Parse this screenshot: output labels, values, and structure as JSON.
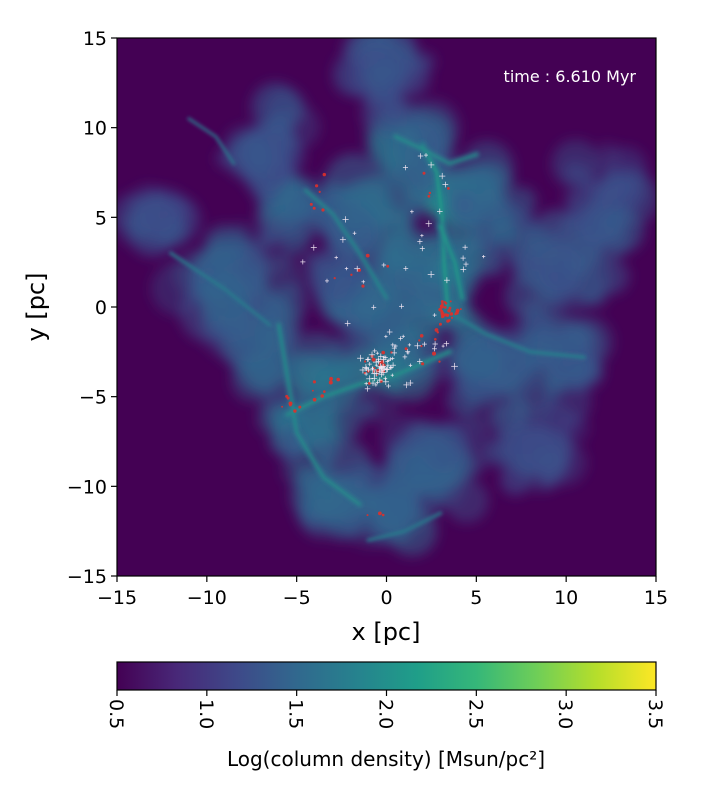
{
  "chart_data": [
    {
      "type": "heatmap",
      "title": "",
      "annotation": "time : 6.610 Myr",
      "xlabel": "x [pc]",
      "ylabel": "y [pc]",
      "xlim": [
        -15,
        15
      ],
      "ylim": [
        -15,
        15
      ],
      "xticks": [
        "−15",
        "−10",
        "−5",
        "0",
        "5",
        "10",
        "15"
      ],
      "xtick_values": [
        -15,
        -10,
        -5,
        0,
        5,
        10,
        15
      ],
      "yticks": [
        "−15",
        "−10",
        "−5",
        "0",
        "5",
        "10",
        "15"
      ],
      "ytick_values": [
        -15,
        -10,
        -5,
        0,
        5,
        10,
        15
      ],
      "grid": false,
      "colormap": "viridis",
      "background_color": "#440154",
      "features": [
        {
          "x": 3.5,
          "y": 6.0,
          "weight": 0.9,
          "spread": 2.2
        },
        {
          "x": 3.3,
          "y": 2.0,
          "weight": 1.0,
          "spread": 1.6
        },
        {
          "x": 3.8,
          "y": -0.2,
          "weight": 1.0,
          "spread": 1.3
        },
        {
          "x": 1.0,
          "y": 9.0,
          "weight": 0.6,
          "spread": 2.5
        },
        {
          "x": 6.0,
          "y": 5.0,
          "weight": 0.5,
          "spread": 3.0
        },
        {
          "x": -1.0,
          "y": 4.5,
          "weight": 0.6,
          "spread": 2.8
        },
        {
          "x": -4.5,
          "y": 5.5,
          "weight": 0.5,
          "spread": 2.5
        },
        {
          "x": -0.3,
          "y": -3.5,
          "weight": 0.8,
          "spread": 2.5
        },
        {
          "x": -3.5,
          "y": -4.5,
          "weight": 0.7,
          "spread": 2.2
        },
        {
          "x": -7.0,
          "y": -1.5,
          "weight": 0.5,
          "spread": 3.0
        },
        {
          "x": -8.5,
          "y": 2.0,
          "weight": 0.45,
          "spread": 3.2
        },
        {
          "x": -5.0,
          "y": -7.0,
          "weight": 0.6,
          "spread": 2.2
        },
        {
          "x": -3.0,
          "y": -10.5,
          "weight": 0.55,
          "spread": 2.2
        },
        {
          "x": 0.0,
          "y": -11.5,
          "weight": 0.6,
          "spread": 2.4
        },
        {
          "x": 2.5,
          "y": -9.0,
          "weight": 0.45,
          "spread": 2.8
        },
        {
          "x": 6.0,
          "y": -3.5,
          "weight": 0.5,
          "spread": 2.8
        },
        {
          "x": 9.5,
          "y": -3.0,
          "weight": 0.45,
          "spread": 2.8
        },
        {
          "x": 10.0,
          "y": 2.5,
          "weight": 0.4,
          "spread": 3.0
        },
        {
          "x": 12.5,
          "y": 6.0,
          "weight": 0.35,
          "spread": 2.5
        },
        {
          "x": 2.0,
          "y": 1.5,
          "weight": 0.6,
          "spread": 2.6
        },
        {
          "x": -2.0,
          "y": 0.5,
          "weight": 0.5,
          "spread": 2.6
        },
        {
          "x": 0.0,
          "y": 13.0,
          "weight": 0.35,
          "spread": 2.5
        },
        {
          "x": -6.5,
          "y": 8.5,
          "weight": 0.3,
          "spread": 2.5
        },
        {
          "x": -12.5,
          "y": 5.0,
          "weight": 0.3,
          "spread": 2.0
        },
        {
          "x": 8.0,
          "y": -7.5,
          "weight": 0.35,
          "spread": 2.5
        }
      ],
      "filaments": [
        {
          "points": [
            [
              3.4,
              0.0
            ],
            [
              3.2,
              2.5
            ],
            [
              3.1,
              5.0
            ],
            [
              2.8,
              7.5
            ],
            [
              2.0,
              9.0
            ]
          ],
          "weight": 1.2
        },
        {
          "points": [
            [
              -5.5,
              -6.0
            ],
            [
              -3.5,
              -5.0
            ],
            [
              -1.5,
              -4.3
            ],
            [
              0.5,
              -3.8
            ],
            [
              3.5,
              -2.5
            ]
          ],
          "weight": 1.0
        },
        {
          "points": [
            [
              -6.0,
              -1.0
            ],
            [
              -5.5,
              -4.0
            ],
            [
              -5.0,
              -7.0
            ],
            [
              -3.5,
              -9.5
            ],
            [
              -1.5,
              -11.0
            ]
          ],
          "weight": 0.9
        },
        {
          "points": [
            [
              0.5,
              9.5
            ],
            [
              2.0,
              8.8
            ],
            [
              3.5,
              8.0
            ],
            [
              5.0,
              8.5
            ]
          ],
          "weight": 0.9
        },
        {
          "points": [
            [
              -4.5,
              6.5
            ],
            [
              -3.0,
              5.2
            ],
            [
              -1.5,
              3.0
            ],
            [
              0.0,
              0.5
            ]
          ],
          "weight": 0.8
        },
        {
          "points": [
            [
              3.5,
              -0.3
            ],
            [
              5.5,
              -1.5
            ],
            [
              8.0,
              -2.5
            ],
            [
              11.0,
              -2.8
            ]
          ],
          "weight": 0.7
        },
        {
          "points": [
            [
              -12.0,
              3.0
            ],
            [
              -9.0,
              1.0
            ],
            [
              -6.5,
              -1.0
            ]
          ],
          "weight": 0.6
        },
        {
          "points": [
            [
              -1.0,
              -13.0
            ],
            [
              1.0,
              -12.5
            ],
            [
              3.0,
              -11.5
            ]
          ],
          "weight": 0.6
        },
        {
          "points": [
            [
              -11.0,
              10.5
            ],
            [
              -9.5,
              9.5
            ],
            [
              -8.5,
              8.0
            ]
          ],
          "weight": 0.5
        },
        {
          "points": [
            [
              3.0,
              4.5
            ],
            [
              3.8,
              2.5
            ],
            [
              4.2,
              0.5
            ]
          ],
          "weight": 1.1
        }
      ],
      "stars": [
        {
          "x": 3.5,
          "y": -0.2,
          "color": "red",
          "count": 30,
          "spread": 0.6
        },
        {
          "x": -0.5,
          "y": -3.5,
          "color": "red",
          "count": 18,
          "spread": 0.9
        },
        {
          "x": -3.5,
          "y": -4.5,
          "color": "red",
          "count": 8,
          "spread": 1.0
        },
        {
          "x": -5.3,
          "y": -5.5,
          "color": "red",
          "count": 8,
          "spread": 0.6
        },
        {
          "x": 2.0,
          "y": -1.5,
          "color": "red",
          "count": 10,
          "spread": 1.4
        },
        {
          "x": -1.5,
          "y": 2.0,
          "color": "red",
          "count": 6,
          "spread": 1.4
        },
        {
          "x": -3.5,
          "y": 6.0,
          "color": "red",
          "count": 6,
          "spread": 1.2
        },
        {
          "x": 2.5,
          "y": 6.5,
          "color": "red",
          "count": 4,
          "spread": 1.5
        },
        {
          "x": -0.5,
          "y": -11.5,
          "color": "red",
          "count": 3,
          "spread": 0.6
        },
        {
          "x": -0.3,
          "y": -3.5,
          "color": "white",
          "count": 55,
          "spread": 1.0
        },
        {
          "x": 1.5,
          "y": -2.5,
          "color": "white",
          "count": 25,
          "spread": 2.0
        },
        {
          "x": 3.0,
          "y": 3.0,
          "color": "white",
          "count": 14,
          "spread": 2.5
        },
        {
          "x": -2.0,
          "y": 2.0,
          "color": "white",
          "count": 14,
          "spread": 2.5
        },
        {
          "x": 2.5,
          "y": 7.5,
          "color": "white",
          "count": 6,
          "spread": 1.5
        }
      ]
    },
    {
      "type": "colorbar",
      "label": "Log(column density) [Msun/pc²]",
      "range": [
        0.5,
        3.5
      ],
      "ticks": [
        "0.5",
        "1.0",
        "1.5",
        "2.0",
        "2.5",
        "3.0",
        "3.5"
      ],
      "tick_values": [
        0.5,
        1.0,
        1.5,
        2.0,
        2.5,
        3.0,
        3.5
      ],
      "orientation": "horizontal",
      "colormap": "viridis",
      "colormap_stops": [
        "#440154",
        "#482878",
        "#3e4989",
        "#31688e",
        "#26828e",
        "#1f9e89",
        "#35b779",
        "#6ece58",
        "#b5de2b",
        "#fde725"
      ]
    }
  ]
}
